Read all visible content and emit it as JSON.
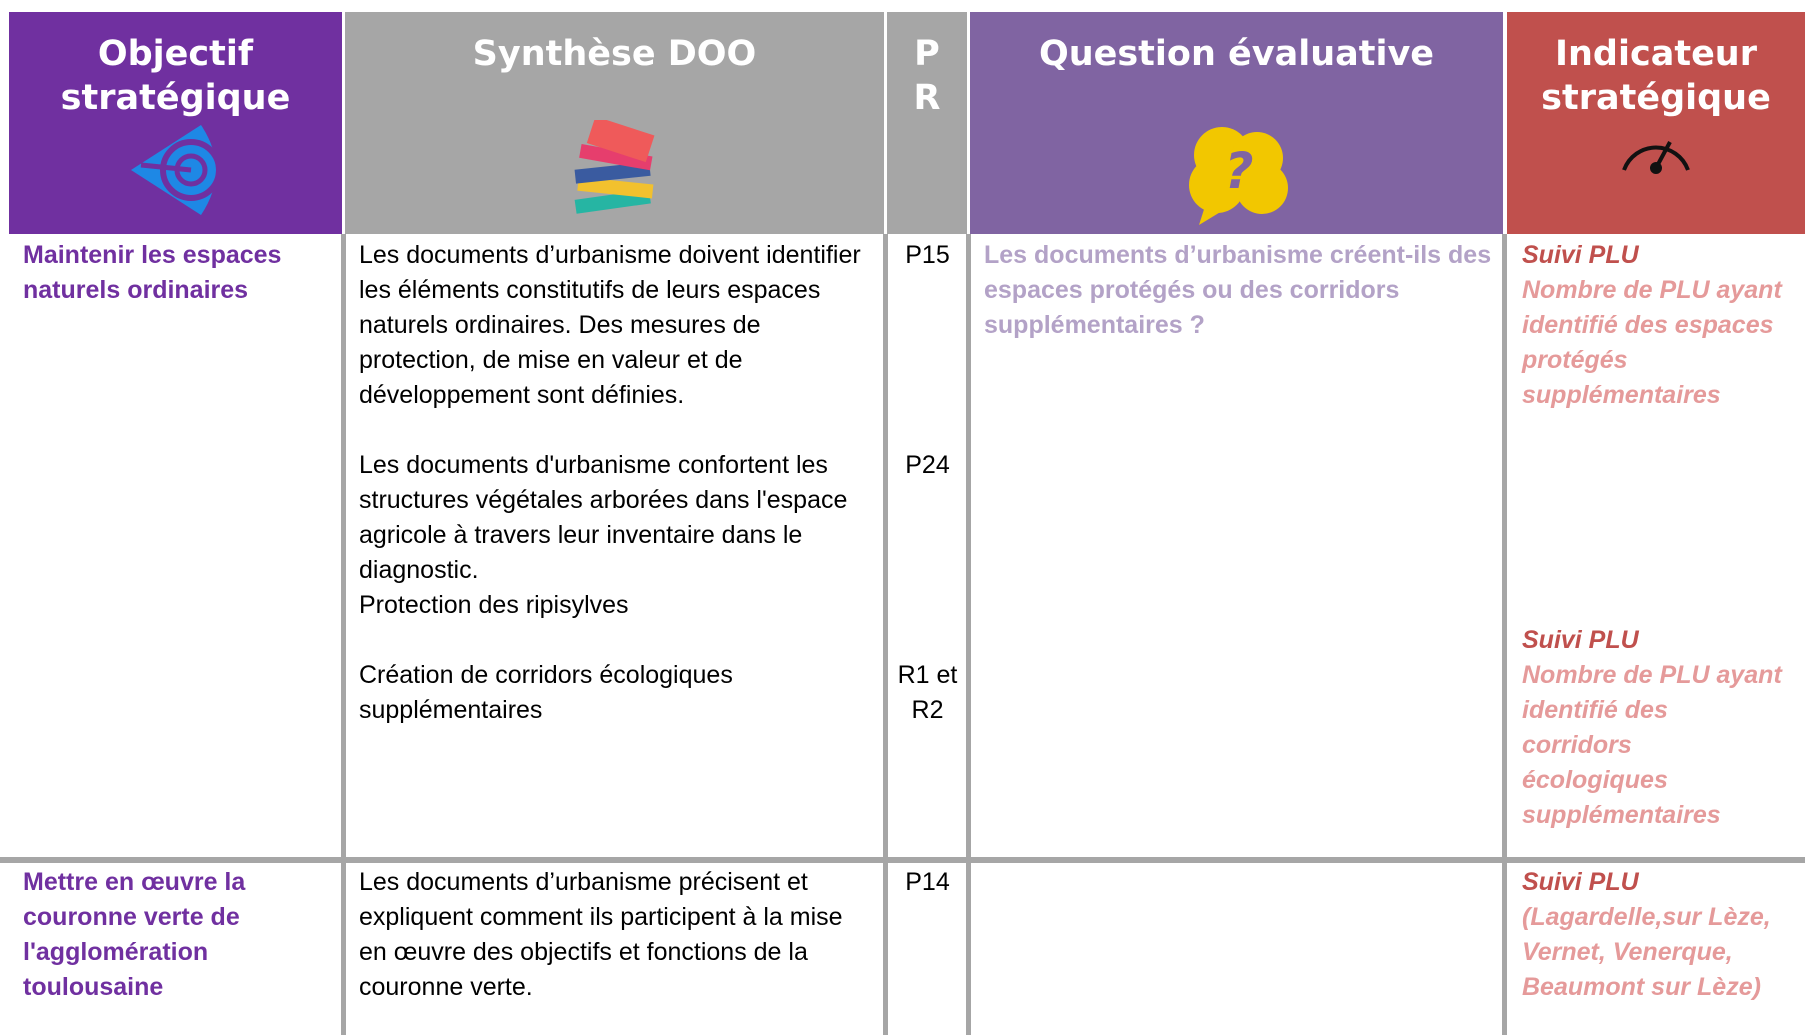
{
  "header": {
    "columns": [
      "Objectif stratégique",
      "Synthèse DOO",
      "P R",
      "Question évaluative",
      "Indicateur stratégique"
    ]
  },
  "rows": [
    {
      "objective": "Maintenir les espaces naturels ordinaires",
      "synthese": [
        "Les documents d’urbanisme doivent identifier les éléments constitutifs de leurs espaces naturels ordinaires. Des mesures de protection, de mise en valeur et de développement sont définies.",
        "Les documents d'urbanisme confortent les structures végétales arborées dans l'espace agricole à travers leur inventaire dans le diagnostic.",
        "Protection des ripisylves",
        "Création de corridors écologiques supplémentaires"
      ],
      "refs": [
        "P15",
        "P24",
        "R1 et R2"
      ],
      "question": "Les documents d’urbanisme créent-ils des espaces protégés ou des corridors supplémentaires ?",
      "indicators": [
        {
          "title": "Suivi PLU",
          "text": "Nombre de PLU ayant identifié des espaces protégés supplémentaires"
        },
        {
          "title": "Suivi PLU",
          "text": "Nombre de PLU ayant identifié des corridors écologiques supplémentaires"
        }
      ]
    },
    {
      "objective": "Mettre en œuvre la couronne verte de l'agglomération toulousaine",
      "synthese": [
        "Les documents d’urbanisme précisent et expliquent comment ils participent à la mise en œuvre des objectifs et fonctions de la couronne verte."
      ],
      "refs": [
        "P14"
      ],
      "question": "",
      "indicators": [
        {
          "title": "Suivi PLU",
          "text": "(Lagardelle,sur Lèze, Vernet, Venerque, Beaumont sur Lèze)"
        }
      ]
    }
  ]
}
